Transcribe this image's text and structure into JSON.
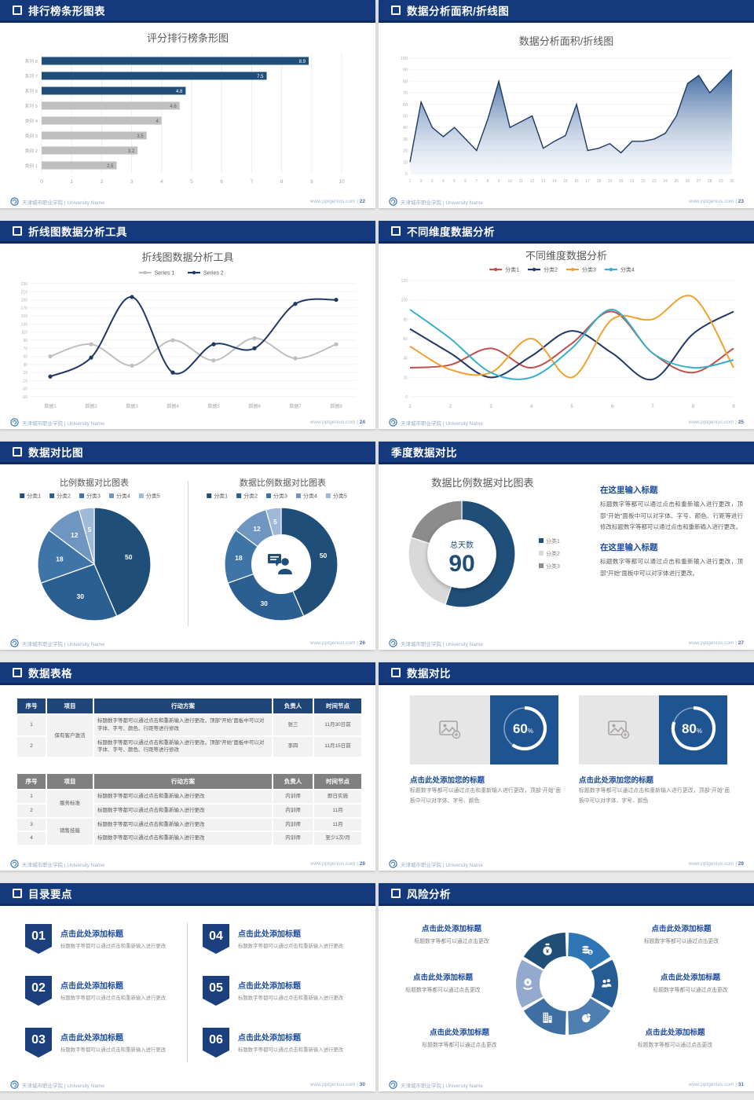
{
  "shared": {
    "footer_org": "天津城市职业学院",
    "footer_sep": "|",
    "footer_university": "University Name",
    "footer_site": "www.pptgenius.com",
    "footer_page_sep": "|"
  },
  "colors": {
    "header_bar": "#143A7D",
    "accent_navy": "#1F4E79",
    "bar_gray": "#BFBFBF",
    "progress_box_blue": "#1F5492"
  },
  "slides": [
    {
      "page": "22",
      "header": {
        "title": "排行榜条形图表"
      }
    },
    {
      "page": "23",
      "header": {
        "title": "数据分析面积/折线图"
      }
    },
    {
      "page": "24",
      "header": {
        "title": "折线图数据分析工具"
      }
    },
    {
      "page": "25",
      "header": {
        "title": "不同维度数据分析"
      }
    },
    {
      "page": "26",
      "header": {
        "title": "数据对比图"
      }
    },
    {
      "page": "27",
      "header": {
        "title": "季度数据对比"
      },
      "right_panel": {
        "sections": [
          {
            "heading": "在这里输入标题",
            "body": "标题数字等都可以通过点击和重新输入进行更改，顶部“开始”面板中可以对字体、字号、颜色、行距等进行修改标题数字等都可以通过点击和重新输入进行更改。"
          },
          {
            "heading": "在这里输入标题",
            "body": "标题数字等都可以通过点击和重新输入进行更改，顶部“开始”面板中可以对字体进行更改。"
          }
        ]
      }
    },
    {
      "page": "28",
      "header": {
        "title": "数据表格"
      },
      "tables": [
        {
          "headers": [
            "序号",
            "项目",
            "行动方案",
            "负责人",
            "时间节点"
          ],
          "group_label": "保有客户激活",
          "rows": [
            {
              "no": "1",
              "action": "标题数字等都可以通过点击和重新输入进行更改，顶部“开始”面板中可以对字体、字号、颜色、行距等进行修改",
              "owner": "张三",
              "time": "11月30日前"
            },
            {
              "no": "2",
              "action": "标题数字等都可以通过点击和重新输入进行更改，顶部“开始”面板中可以对字体、字号、颜色、行距等进行修改",
              "owner": "李四",
              "time": "11月15日前"
            }
          ]
        },
        {
          "headers": [
            "序号",
            "项目",
            "行动方案",
            "负责人",
            "时间节点"
          ],
          "group_labels": [
            "服务标准",
            "销售技能"
          ],
          "rows": [
            {
              "no": "1",
              "action": "标题数字等都可以通过点击和重新输入进行更改",
              "owner": "内训师",
              "time": "即日实施"
            },
            {
              "no": "2",
              "action": "标题数字等都可以通过点击和重新输入进行更改",
              "owner": "内训师",
              "time": "11月"
            },
            {
              "no": "3",
              "action": "标题数字等都可以通过点击和重新输入进行更改",
              "owner": "内训师",
              "time": "11月"
            },
            {
              "no": "4",
              "action": "标题数字等都可以通过点击和重新输入进行更改",
              "owner": "内训师",
              "time": "至少1次/月"
            }
          ]
        }
      ]
    },
    {
      "page": "29",
      "header": {
        "title": "数据对比"
      },
      "cards": [
        {
          "title": "点击此处添加您的标题",
          "body": "标题数字等都可以通过点击和重新输入进行更改，顶部“开始”面板中可以对字体、字号、颜色"
        },
        {
          "title": "点击此处添加您的标题",
          "body": "标题数字等都可以通过点击和重新输入进行更改，顶部“开始”面板中可以对字体、字号、颜色"
        }
      ]
    },
    {
      "page": "30",
      "header": {
        "title": "目录要点"
      },
      "items": [
        {
          "num": "01",
          "title": "点击此处添加标题",
          "body": "标题数字等都可以通过点击和重新输入进行更改"
        },
        {
          "num": "02",
          "title": "点击此处添加标题",
          "body": "标题数字等都可以通过点击和重新输入进行更改"
        },
        {
          "num": "03",
          "title": "点击此处添加标题",
          "body": "标题数字等都可以通过点击和重新输入进行更改"
        },
        {
          "num": "04",
          "title": "点击此处添加标题",
          "body": "标题数字等都可以通过点击和重新输入进行更改"
        },
        {
          "num": "05",
          "title": "点击此处添加标题",
          "body": "标题数字等都可以通过点击和重新输入进行更改"
        },
        {
          "num": "06",
          "title": "点击此处添加标题",
          "body": "标题数字等都可以通过点击和重新输入进行更改"
        }
      ]
    },
    {
      "page": "31",
      "header": {
        "title": "风险分析"
      },
      "items": [
        {
          "title": "点击此处添加标题",
          "body": "标题数字等都可以通过点击更改"
        },
        {
          "title": "点击此处添加标题",
          "body": "标题数字等都可以通过点击更改"
        },
        {
          "title": "点击此处添加标题",
          "body": "标题数字等都可以通过点击更改"
        },
        {
          "title": "点击此处添加标题",
          "body": "标题数字等都可以通过点击更改"
        },
        {
          "title": "点击此处添加标题",
          "body": "标题数字等都可以通过点击更改"
        },
        {
          "title": "点击此处添加标题",
          "body": "标题数字等都可以通过点击更改"
        }
      ],
      "blade_icons": [
        "money-bag-icon",
        "coins-icon",
        "people-icon",
        "pie-icon",
        "building-icon",
        "yen-icon"
      ],
      "blade_colors": [
        "#1F4E79",
        "#2E75B6",
        "#265C94",
        "#4E7FB0",
        "#3D6FA3",
        "#93A9CD"
      ]
    }
  ],
  "chart_data": [
    {
      "type": "bar",
      "orientation": "horizontal",
      "title": "评分排行榜条形图",
      "categories": [
        "系列 8",
        "系列 7",
        "系列 6",
        "系列 5",
        "类别 4",
        "类别 3",
        "类别 2",
        "类别 1"
      ],
      "values": [
        8.9,
        7.5,
        4.8,
        4.6,
        4,
        3.5,
        3.2,
        2.5
      ],
      "bar_colors": [
        "#1F4E79",
        "#1F4E79",
        "#1F4E79",
        "#BFBFBF",
        "#BFBFBF",
        "#BFBFBF",
        "#BFBFBF",
        "#BFBFBF"
      ],
      "xlim": [
        0,
        10
      ],
      "xtick_step": 1,
      "grid": true
    },
    {
      "type": "area",
      "title": "数据分析面积/折线图",
      "x": [
        1,
        2,
        3,
        4,
        5,
        6,
        7,
        8,
        9,
        10,
        11,
        12,
        13,
        14,
        15,
        16,
        17,
        18,
        19,
        20,
        21,
        22,
        23,
        24,
        25,
        26,
        27,
        28,
        29,
        30
      ],
      "values": [
        10,
        62,
        40,
        32,
        40,
        30,
        20,
        47,
        80,
        40,
        45,
        50,
        22,
        28,
        33,
        60,
        20,
        22,
        26,
        18,
        28,
        28,
        30,
        35,
        50,
        78,
        85,
        70,
        80,
        90
      ],
      "ylim": [
        0,
        100
      ],
      "ytick_step": 10,
      "line_color": "#1F3864",
      "fill_from": "#2E5B97",
      "fill_to": "#D7E1F0",
      "grid": true
    },
    {
      "type": "line",
      "title": "折线图数据分析工具",
      "categories": [
        "数据1",
        "数据2",
        "数据3",
        "数据4",
        "数据5",
        "数据6",
        "数据7",
        "数据8"
      ],
      "series": [
        {
          "name": "Series 1",
          "color": "#BFBFBF",
          "values": [
            50,
            80,
            27,
            90,
            40,
            95,
            45,
            80
          ]
        },
        {
          "name": "Series 2",
          "color": "#1F3864",
          "values": [
            0,
            47,
            197,
            10,
            80,
            70,
            180,
            190
          ]
        }
      ],
      "ylim": [
        -50,
        230
      ],
      "ytick_step": 20,
      "markers": true,
      "smooth": true,
      "legend_position": "top",
      "grid": true
    },
    {
      "type": "line",
      "title": "不同维度数据分析",
      "x": [
        1,
        2,
        3,
        4,
        5,
        6,
        7,
        8,
        9
      ],
      "series": [
        {
          "name": "分类1",
          "color": "#C0504D",
          "values": [
            30,
            33,
            50,
            30,
            55,
            88,
            45,
            25,
            50
          ]
        },
        {
          "name": "分类2",
          "color": "#1F3864",
          "values": [
            70,
            45,
            20,
            42,
            68,
            45,
            18,
            65,
            88
          ]
        },
        {
          "name": "分类3",
          "color": "#F0A22E",
          "values": [
            52,
            28,
            25,
            60,
            20,
            80,
            80,
            103,
            30
          ]
        },
        {
          "name": "分类4",
          "color": "#36B0C9",
          "values": [
            90,
            60,
            25,
            20,
            50,
            90,
            45,
            30,
            38
          ]
        }
      ],
      "ylim": [
        0,
        120
      ],
      "ytick_step": 20,
      "markers": false,
      "smooth": true,
      "legend_position": "top",
      "grid": true
    },
    {
      "type": "pie",
      "title": "比例数据对比图表",
      "labels": [
        "分类1",
        "分类2",
        "分类3",
        "分类4",
        "分类5"
      ],
      "values": [
        50,
        30,
        18,
        12,
        5
      ],
      "colors": [
        "#1F4E79",
        "#2C5F91",
        "#3F74A6",
        "#6E96C1",
        "#9FB9D8"
      ],
      "legend_position": "top"
    },
    {
      "type": "donut",
      "title": "数据比例数据对比图表",
      "labels": [
        "分类1",
        "分类2",
        "分类3",
        "分类4",
        "分类5"
      ],
      "values": [
        50,
        30,
        18,
        12,
        5
      ],
      "colors": [
        "#1F4E79",
        "#2C5F91",
        "#3F74A6",
        "#6E96C1",
        "#9FB9D8"
      ],
      "inner_ratio": 0.52,
      "center_icon": "person-icon",
      "legend_position": "top"
    },
    {
      "type": "donut",
      "title": "数据比例数据对比图表",
      "labels": [
        "分类1",
        "分类2",
        "分类3"
      ],
      "values": [
        55,
        25,
        20
      ],
      "colors": [
        "#1F4E79",
        "#D9D9D9",
        "#8C8C8C"
      ],
      "inner_ratio": 0.63,
      "slice_labels": false,
      "legend_position": "right",
      "center_title": "总天数",
      "center_value": "90"
    },
    {
      "type": "progress",
      "value": 60,
      "suffix": "%"
    },
    {
      "type": "progress",
      "value": 80,
      "suffix": "%"
    }
  ]
}
